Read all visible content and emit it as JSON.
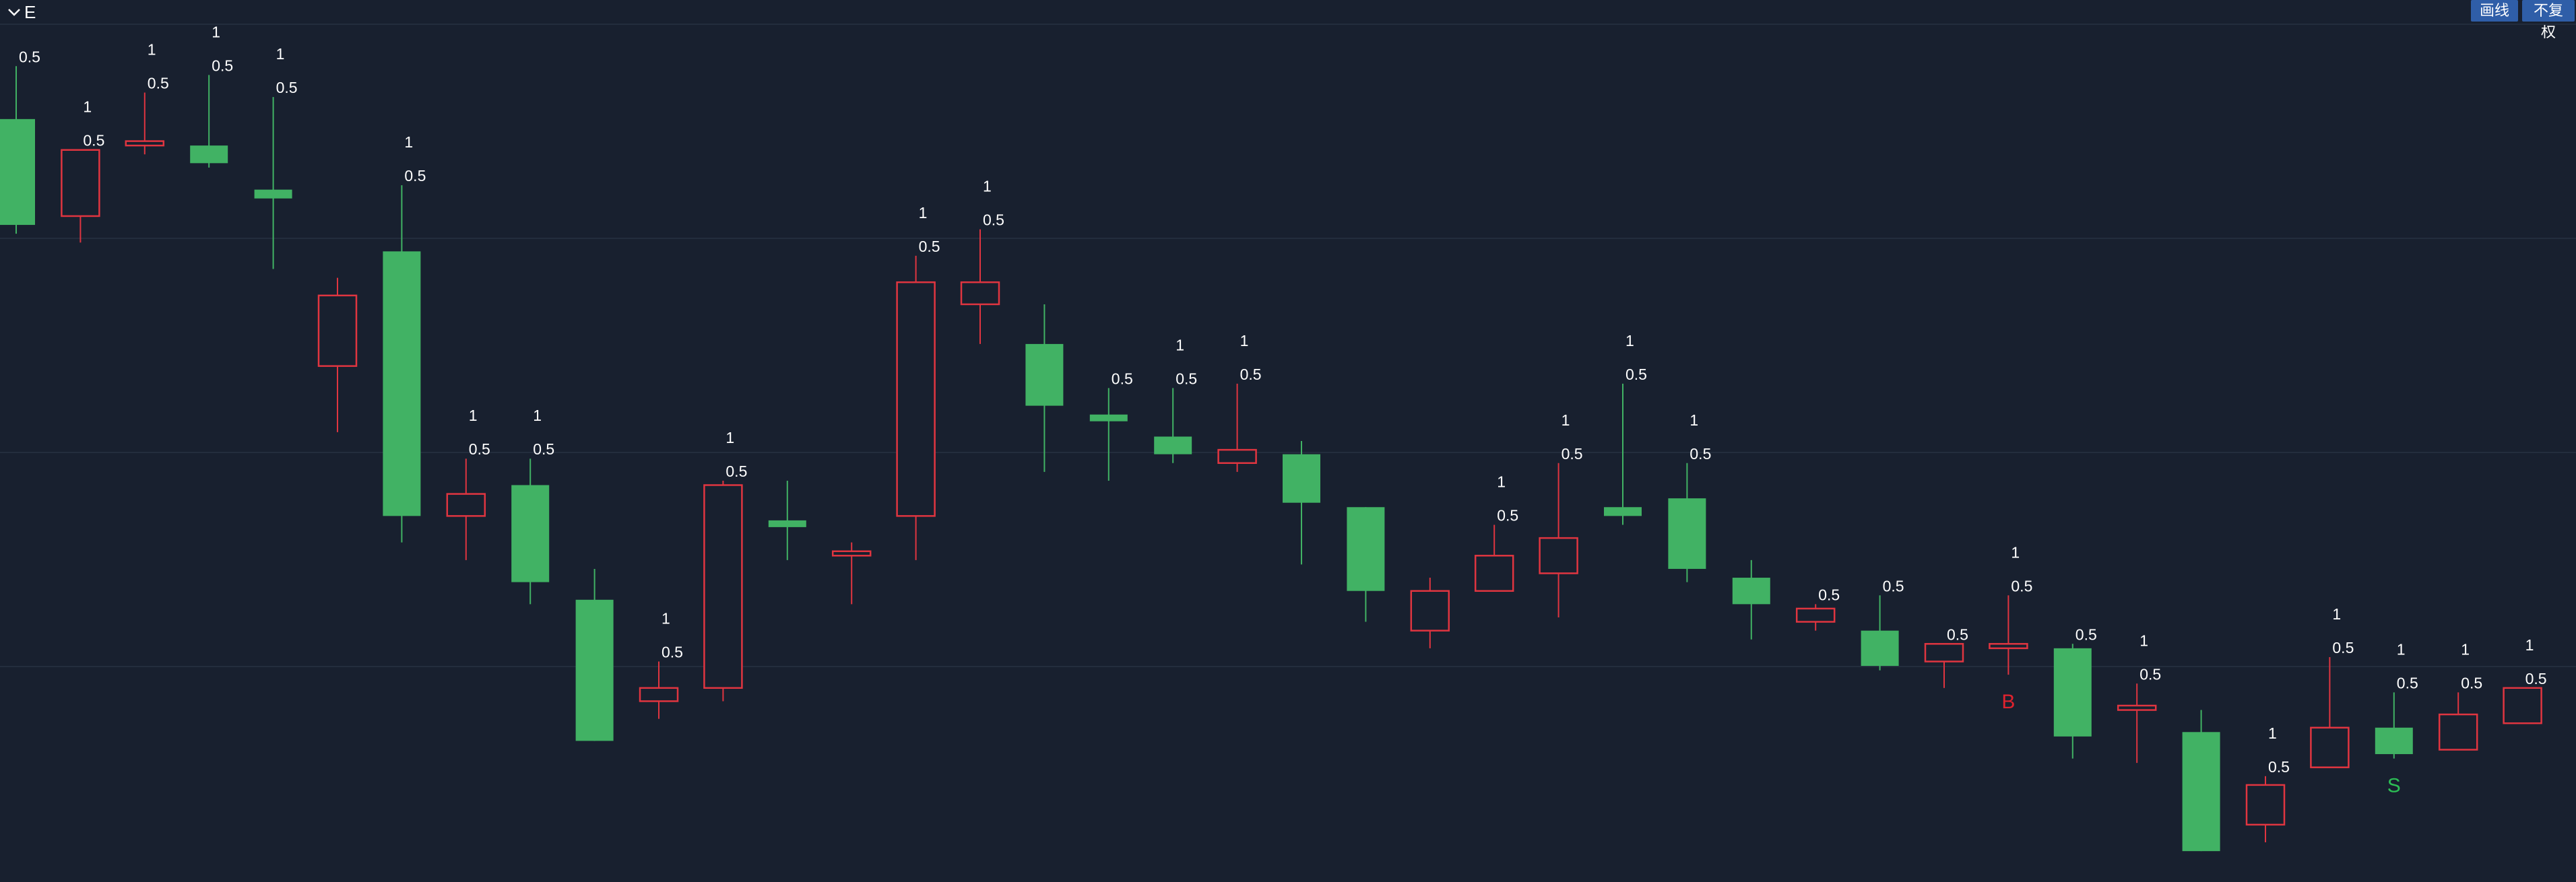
{
  "toolbar": {
    "title": "E",
    "buttons": {
      "draw": "画线",
      "adjust": "不复权"
    }
  },
  "colors": {
    "up": "#e03540",
    "down": "#41b264",
    "background": "#18202f",
    "grid": "#232d3d",
    "text": "#ffffff"
  },
  "icons": {
    "collapse": "chevron-down-icon"
  },
  "chart_data": {
    "type": "candlestick",
    "title": "",
    "grid": true,
    "legend": "none",
    "ylim": [
      0,
      100
    ],
    "candles": [
      {
        "o": 86.5,
        "h": 92.5,
        "l": 73.5,
        "c": 74.5,
        "labels": [
          "0.5"
        ]
      },
      {
        "o": 75.5,
        "h": 83.0,
        "l": 72.5,
        "c": 83.0,
        "labels": [
          "1",
          "0.5"
        ]
      },
      {
        "o": 83.5,
        "h": 89.5,
        "l": 82.5,
        "c": 84.0,
        "labels": [
          "1",
          "0.5"
        ]
      },
      {
        "o": 83.5,
        "h": 91.5,
        "l": 81.0,
        "c": 81.5,
        "labels": [
          "1",
          "0.5"
        ]
      },
      {
        "o": 78.5,
        "h": 89.0,
        "l": 69.5,
        "c": 77.5,
        "labels": [
          "1",
          "0.5"
        ]
      },
      {
        "o": 58.5,
        "h": 68.5,
        "l": 51.0,
        "c": 66.5,
        "labels": []
      },
      {
        "o": 71.5,
        "h": 79.0,
        "l": 38.5,
        "c": 41.5,
        "labels": [
          "1",
          "0.5"
        ]
      },
      {
        "o": 41.5,
        "h": 48.0,
        "l": 36.5,
        "c": 44.0,
        "labels": [
          "1",
          "0.5"
        ]
      },
      {
        "o": 45.0,
        "h": 48.0,
        "l": 31.5,
        "c": 34.0,
        "labels": [
          "1",
          "0.5"
        ]
      },
      {
        "o": 32.0,
        "h": 35.5,
        "l": 16.0,
        "c": 16.0,
        "labels": []
      },
      {
        "o": 20.5,
        "h": 25.0,
        "l": 18.5,
        "c": 22.0,
        "labels": [
          "1",
          "0.5"
        ]
      },
      {
        "o": 22.0,
        "h": 45.5,
        "l": 20.5,
        "c": 45.0,
        "labels": [
          "1",
          "0.5"
        ]
      },
      {
        "o": 41.0,
        "h": 45.5,
        "l": 36.5,
        "c": 40.5,
        "labels": []
      },
      {
        "o": 37.0,
        "h": 38.5,
        "l": 31.5,
        "c": 37.5,
        "labels": []
      },
      {
        "o": 41.5,
        "h": 71.0,
        "l": 36.5,
        "c": 68.0,
        "labels": [
          "1",
          "0.5"
        ]
      },
      {
        "o": 65.5,
        "h": 74.0,
        "l": 61.0,
        "c": 68.0,
        "labels": [
          "1",
          "0.5"
        ]
      },
      {
        "o": 61.0,
        "h": 65.5,
        "l": 46.5,
        "c": 54.0,
        "labels": []
      },
      {
        "o": 53.0,
        "h": 56.0,
        "l": 45.5,
        "c": 52.5,
        "labels": [
          "0.5"
        ]
      },
      {
        "o": 50.5,
        "h": 56.0,
        "l": 47.5,
        "c": 48.5,
        "labels": [
          "1",
          "0.5"
        ]
      },
      {
        "o": 47.5,
        "h": 56.5,
        "l": 46.5,
        "c": 49.0,
        "labels": [
          "1",
          "0.5"
        ]
      },
      {
        "o": 48.5,
        "h": 50.0,
        "l": 36.0,
        "c": 43.0,
        "labels": []
      },
      {
        "o": 42.5,
        "h": 42.5,
        "l": 29.5,
        "c": 33.0,
        "labels": []
      },
      {
        "o": 28.5,
        "h": 34.5,
        "l": 26.5,
        "c": 33.0,
        "labels": []
      },
      {
        "o": 33.0,
        "h": 40.5,
        "l": 33.0,
        "c": 37.0,
        "labels": [
          "1",
          "0.5"
        ]
      },
      {
        "o": 35.0,
        "h": 47.5,
        "l": 30.0,
        "c": 39.0,
        "labels": [
          "1",
          "0.5"
        ]
      },
      {
        "o": 42.5,
        "h": 56.5,
        "l": 40.5,
        "c": 41.5,
        "labels": [
          "1",
          "0.5"
        ]
      },
      {
        "o": 43.5,
        "h": 47.5,
        "l": 34.0,
        "c": 35.5,
        "labels": [
          "1",
          "0.5"
        ]
      },
      {
        "o": 34.5,
        "h": 36.5,
        "l": 27.5,
        "c": 31.5,
        "labels": []
      },
      {
        "o": 29.5,
        "h": 31.5,
        "l": 28.5,
        "c": 31.0,
        "labels": [
          "0.5"
        ]
      },
      {
        "o": 28.5,
        "h": 32.5,
        "l": 24.0,
        "c": 24.5,
        "labels": [
          "0.5"
        ]
      },
      {
        "o": 25.0,
        "h": 27.0,
        "l": 22.0,
        "c": 27.0,
        "labels": [
          "0.5"
        ]
      },
      {
        "o": 26.5,
        "h": 32.5,
        "l": 23.5,
        "c": 27.0,
        "labels": [
          "1",
          "0.5"
        ],
        "marker": "B"
      },
      {
        "o": 26.5,
        "h": 27.0,
        "l": 14.0,
        "c": 16.5,
        "labels": [
          "0.5"
        ]
      },
      {
        "o": 19.5,
        "h": 22.5,
        "l": 13.5,
        "c": 20.0,
        "labels": [
          "1",
          "0.5"
        ]
      },
      {
        "o": 17.0,
        "h": 19.5,
        "l": 3.5,
        "c": 3.5,
        "labels": []
      },
      {
        "o": 6.5,
        "h": 12.0,
        "l": 4.5,
        "c": 11.0,
        "labels": [
          "1",
          "0.5"
        ]
      },
      {
        "o": 13.0,
        "h": 25.5,
        "l": 13.0,
        "c": 17.5,
        "labels": [
          "1",
          "0.5"
        ]
      },
      {
        "o": 17.5,
        "h": 21.5,
        "l": 14.0,
        "c": 14.5,
        "labels": [
          "1",
          "0.5"
        ],
        "marker": "S"
      },
      {
        "o": 15.0,
        "h": 21.5,
        "l": 15.0,
        "c": 19.0,
        "labels": [
          "1",
          "0.5"
        ]
      },
      {
        "o": 18.0,
        "h": 22.0,
        "l": 18.0,
        "c": 22.0,
        "labels": [
          "1",
          "0.5"
        ]
      }
    ]
  }
}
